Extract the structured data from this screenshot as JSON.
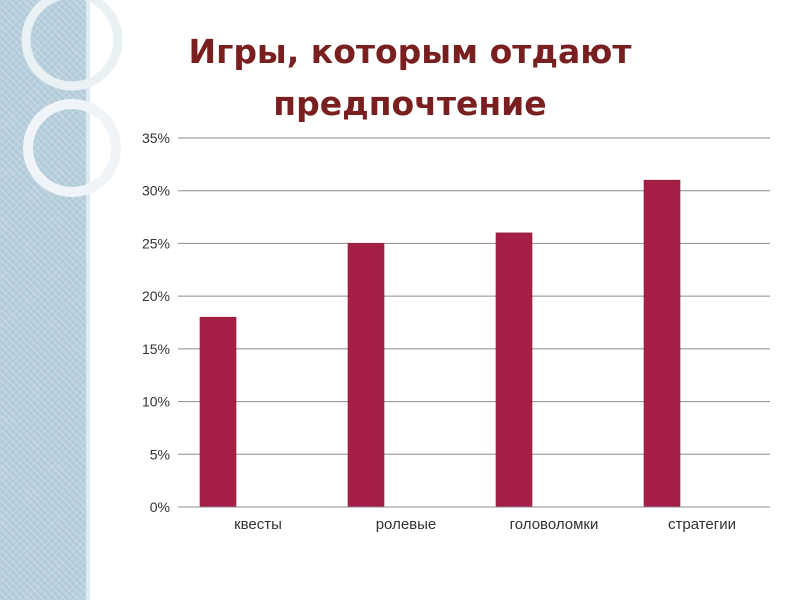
{
  "slide": {
    "title_line1": "Игры, которым отдают",
    "title_line2": "предпочтение"
  },
  "chart_data": {
    "type": "bar",
    "title": "Игры, которым отдают предпочтение",
    "categories": [
      "квесты",
      "ролевые",
      "головоломки",
      "стратегии"
    ],
    "values": [
      18,
      25,
      26,
      31
    ],
    "unit": "%",
    "ylim": [
      0,
      35
    ],
    "yticks": [
      0,
      5,
      10,
      15,
      20,
      25,
      30,
      35
    ],
    "ytick_labels": [
      "0%",
      "5%",
      "10%",
      "15%",
      "20%",
      "25%",
      "30%",
      "35%"
    ],
    "grid": true,
    "legend": "none",
    "bar_color": "#a51e45"
  }
}
